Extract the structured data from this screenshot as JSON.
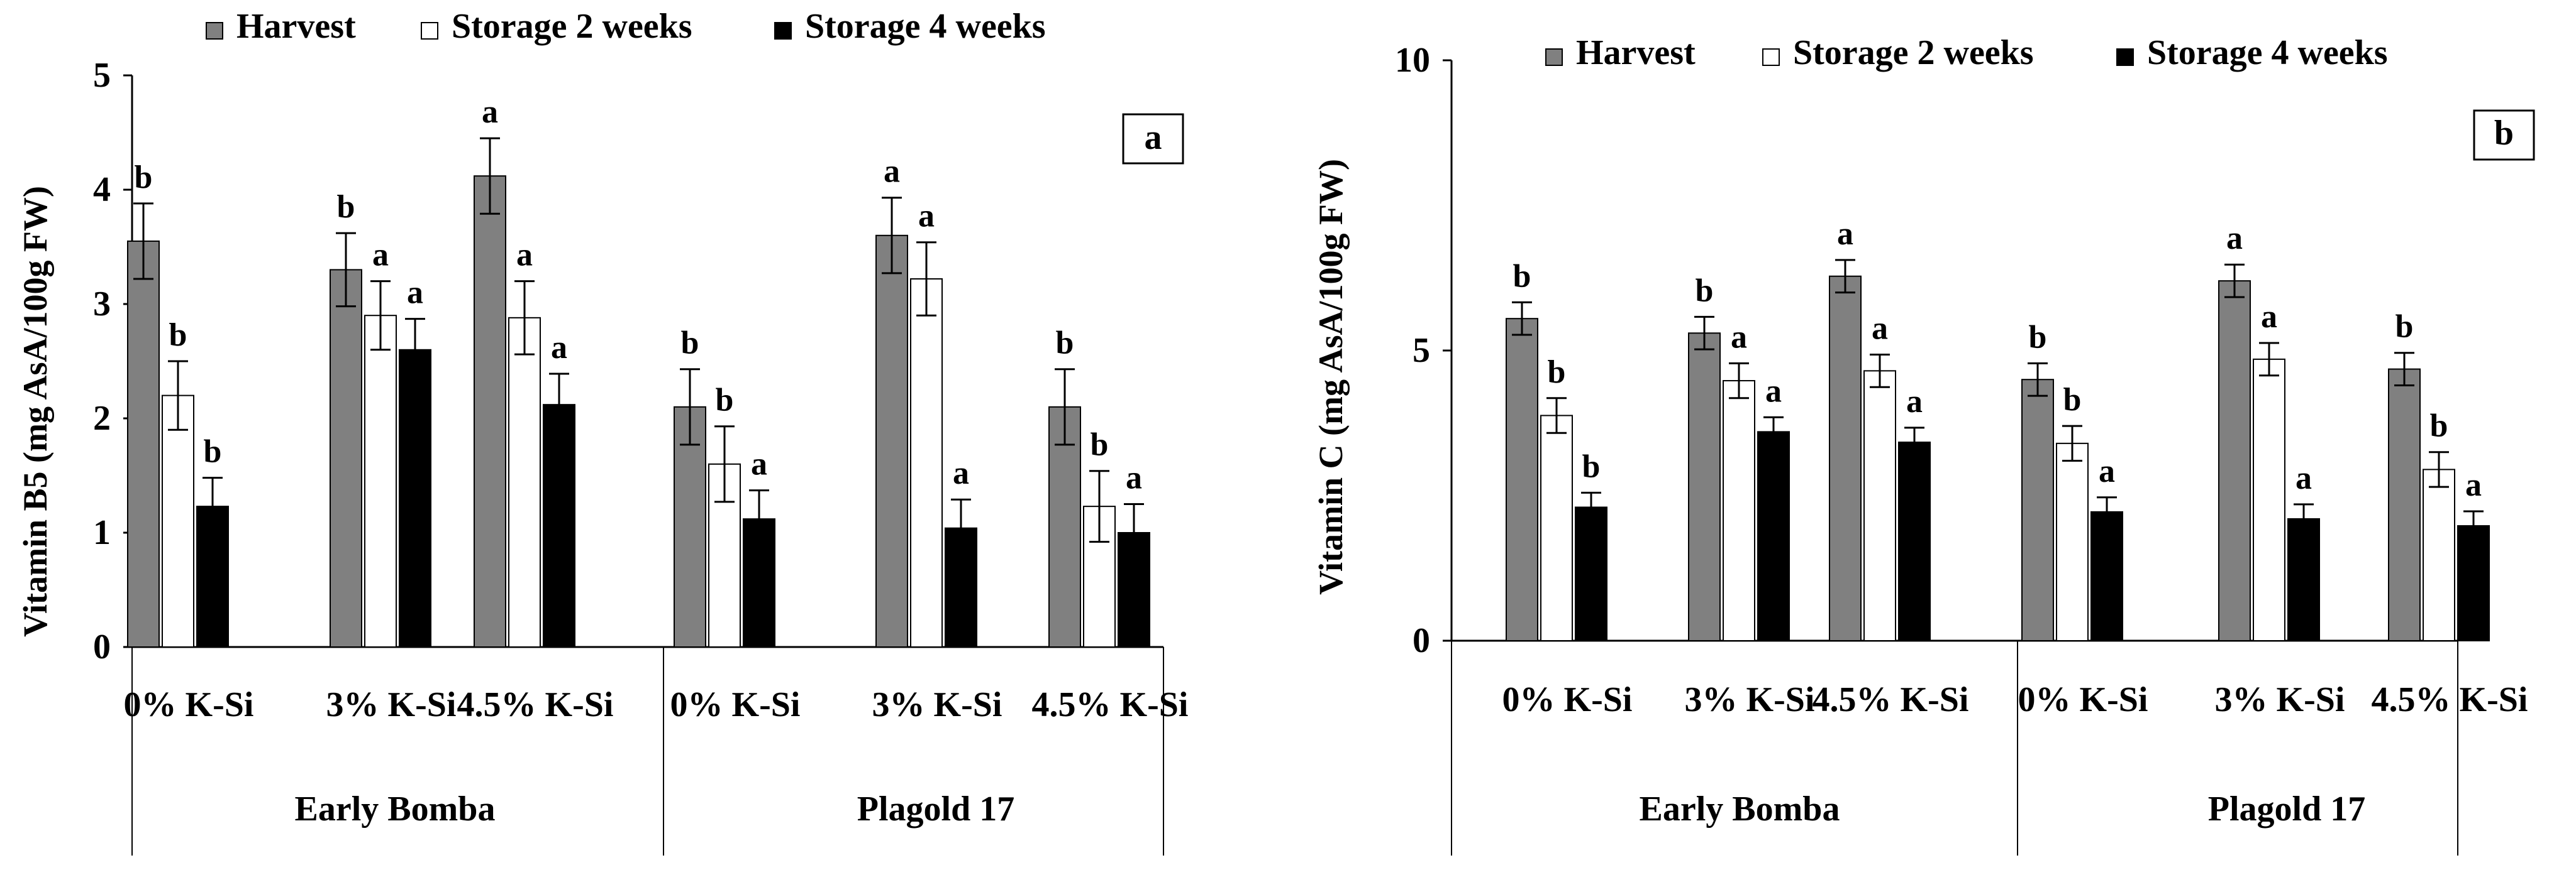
{
  "legend": {
    "items": [
      {
        "label": "Harvest",
        "color": "#808080"
      },
      {
        "label": "Storage 2 weeks",
        "color": "#ffffff"
      },
      {
        "label": "Storage 4 weeks",
        "color": "#000000"
      }
    ]
  },
  "chart_data": [
    {
      "type": "bar",
      "panel_label": "a",
      "ylabel": "Vitamin B5 (mg AsA/100g  FW)",
      "ylim": [
        0,
        5
      ],
      "yticks": [
        "0",
        "1",
        "2",
        "3",
        "4",
        "5"
      ],
      "groups": [
        "Early Bomba",
        "Plagold 17"
      ],
      "categories": [
        "0% K-Si",
        "3% K-Si",
        "4.5% K-Si",
        "0% K-Si",
        "3% K-Si",
        "4.5% K-Si"
      ],
      "series": [
        {
          "name": "Harvest",
          "values": [
            3.55,
            3.3,
            4.12,
            2.1,
            3.6,
            2.1
          ],
          "errors": [
            0.33,
            0.32,
            0.33,
            0.33,
            0.33,
            0.33
          ],
          "letters": [
            "b",
            "b",
            "a",
            "b",
            "a",
            "b"
          ]
        },
        {
          "name": "Storage 2 weeks",
          "values": [
            2.2,
            2.9,
            2.88,
            1.6,
            3.22,
            1.23
          ],
          "errors": [
            0.3,
            0.3,
            0.32,
            0.33,
            0.32,
            0.31
          ],
          "letters": [
            "b",
            "a",
            "a",
            "b",
            "a",
            "b"
          ]
        },
        {
          "name": "Storage 4 weeks",
          "values": [
            1.23,
            2.6,
            2.12,
            1.12,
            1.04,
            1.0
          ],
          "errors": [
            0.25,
            0.27,
            0.27,
            0.25,
            0.25,
            0.25
          ],
          "letters": [
            "b",
            "a",
            "a",
            "a",
            "a",
            "a"
          ]
        }
      ],
      "grid": false,
      "legend_position": "top"
    },
    {
      "type": "bar",
      "panel_label": "b",
      "ylabel": "Vitamin C (mg AsA/100g  FW)",
      "ylim": [
        0,
        10
      ],
      "yticks": [
        "0",
        "5",
        "10"
      ],
      "groups": [
        "Early Bomba",
        "Plagold 17"
      ],
      "categories": [
        "0% K-Si",
        "3% K-Si",
        "4.5% K-Si",
        "0% K-Si",
        "3% K-Si",
        "4.5% K-Si"
      ],
      "series": [
        {
          "name": "Harvest",
          "values": [
            5.55,
            5.3,
            6.28,
            4.5,
            6.2,
            4.68
          ],
          "errors": [
            0.28,
            0.28,
            0.28,
            0.28,
            0.28,
            0.28
          ],
          "letters": [
            "b",
            "b",
            "a",
            "b",
            "a",
            "b"
          ]
        },
        {
          "name": "Storage 2 weeks",
          "values": [
            3.88,
            4.48,
            4.65,
            3.4,
            4.85,
            2.95
          ],
          "errors": [
            0.3,
            0.3,
            0.28,
            0.3,
            0.28,
            0.3
          ],
          "letters": [
            "b",
            "a",
            "a",
            "b",
            "a",
            "b"
          ]
        },
        {
          "name": "Storage 4 weeks",
          "values": [
            2.3,
            3.6,
            3.42,
            2.22,
            2.1,
            1.98
          ],
          "errors": [
            0.25,
            0.25,
            0.25,
            0.25,
            0.25,
            0.25
          ],
          "letters": [
            "b",
            "a",
            "a",
            "a",
            "a",
            "a"
          ]
        }
      ],
      "grid": false,
      "legend_position": "top"
    }
  ]
}
